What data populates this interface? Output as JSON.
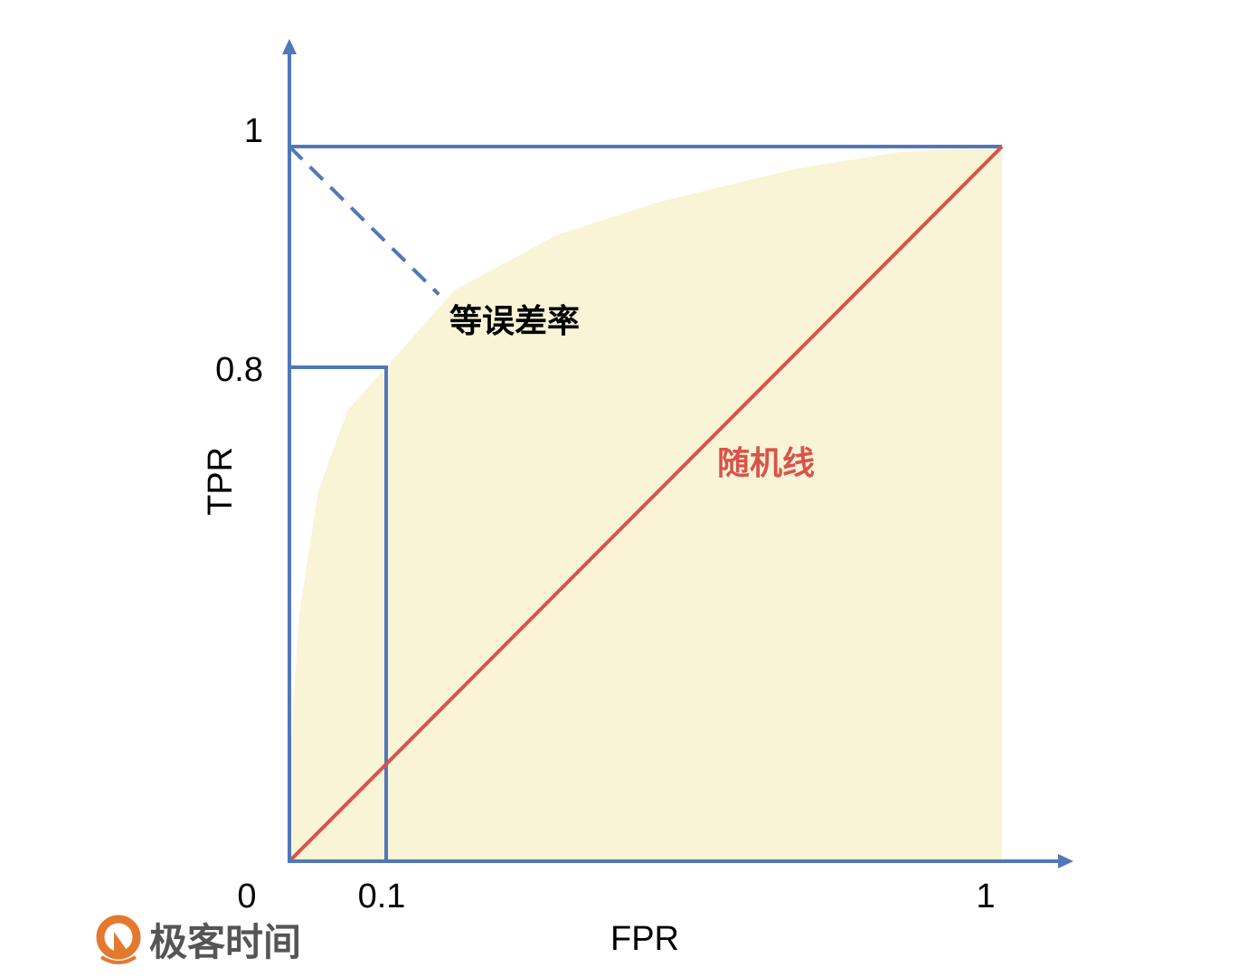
{
  "chart_data": {
    "type": "line",
    "xlabel": "FPR",
    "ylabel": "TPR",
    "xlim": [
      0,
      1
    ],
    "ylim": [
      0,
      1
    ],
    "grid": false,
    "x_ticks": [
      {
        "value": 0,
        "label": "0"
      },
      {
        "value": 0.1,
        "label": "0.1"
      },
      {
        "value": 1,
        "label": "1"
      }
    ],
    "y_ticks": [
      {
        "value": 0.8,
        "label": "0.8"
      },
      {
        "value": 1,
        "label": "1"
      }
    ],
    "roc_curve": {
      "x": [
        0,
        0.002,
        0.01,
        0.03,
        0.06,
        0.1,
        0.2,
        0.35,
        0.5,
        0.7,
        0.85,
        1
      ],
      "y": [
        0,
        0.2,
        0.4,
        0.6,
        0.73,
        0.8,
        0.87,
        0.92,
        0.95,
        0.98,
        0.995,
        1
      ],
      "fill": "#f9f4d5"
    },
    "random_line": {
      "x": [
        0,
        1
      ],
      "y": [
        0,
        1
      ],
      "label": "随机线",
      "color": "#d9534a"
    },
    "eer_line": {
      "x": [
        0,
        0.177
      ],
      "y": [
        1,
        0.866
      ],
      "label": "等误差率",
      "color": "#5077bb",
      "dashed": true
    },
    "operating_point": {
      "x": 0.1,
      "y": 0.8
    },
    "axis_color": "#5077bb"
  },
  "logo": {
    "text": "极客时间",
    "color": "#e5782f"
  }
}
